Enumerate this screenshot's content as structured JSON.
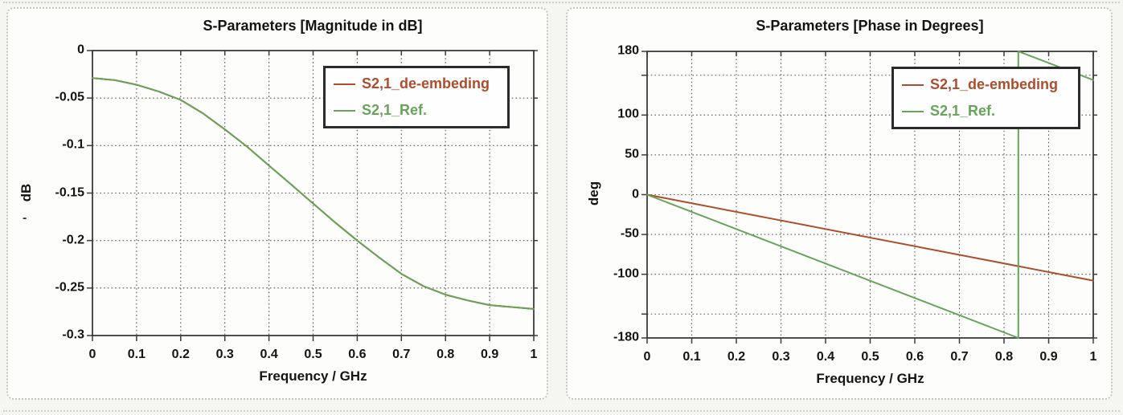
{
  "window": {
    "description": "Scanned screenshot of two side-by-side S-parameter result plots"
  },
  "colors": {
    "page_background": "#f5f5f2",
    "panel_background": "#fdfdfc",
    "panel_border": "#c5c5be",
    "axis_frame": "#3b3b3b",
    "grid": "#575757",
    "text": "#141414",
    "series_red": "#ac4e2c",
    "series_green": "#67a35a",
    "legend_border": "#2b2b2b"
  },
  "artifacts": {
    "smudge_dash": "-"
  },
  "chart_data": [
    {
      "id": "magnitude",
      "type": "line",
      "title": "S-Parameters [Magnitude in dB]",
      "xlabel": "Frequency / GHz",
      "ylabel": "dB",
      "xlim": [
        0,
        1
      ],
      "ylim": [
        -0.3,
        0
      ],
      "grid": "dotted",
      "x_tick_values": [
        0,
        0.1,
        0.2,
        0.3,
        0.4,
        0.5,
        0.6,
        0.7,
        0.8,
        0.9,
        1
      ],
      "x_tick_labels": [
        "0",
        "0.1",
        "0.2",
        "0.3",
        "0.4",
        "0.5",
        "0.6",
        "0.7",
        "0.8",
        "0.9",
        "1"
      ],
      "y_tick_values": [
        0,
        -0.05,
        -0.1,
        -0.15,
        -0.2,
        -0.25,
        -0.3
      ],
      "y_tick_labels": [
        "0",
        "-0.05",
        "-0.1",
        "-0.15",
        "-0.2",
        "-0.25",
        "-0.3"
      ],
      "x_grid_values": [
        0.1,
        0.2,
        0.3,
        0.4,
        0.5,
        0.6,
        0.7,
        0.8,
        0.9
      ],
      "y_grid_values": [
        -0.05,
        -0.1,
        -0.15,
        -0.2,
        -0.25
      ],
      "legend": {
        "position": "top-right-inside",
        "entries": [
          {
            "label": "S2,1_de-embeding",
            "color": "#ac4e2c"
          },
          {
            "label": "S2,1_Ref.",
            "color": "#67a35a"
          }
        ]
      },
      "series": [
        {
          "name": "S2,1_de-embeding",
          "color": "#ac4e2c",
          "x": [
            0,
            0.05,
            0.1,
            0.15,
            0.2,
            0.25,
            0.3,
            0.35,
            0.4,
            0.45,
            0.5,
            0.55,
            0.6,
            0.65,
            0.7,
            0.75,
            0.8,
            0.85,
            0.9,
            0.95,
            1
          ],
          "y": [
            -0.029,
            -0.031,
            -0.036,
            -0.043,
            -0.052,
            -0.066,
            -0.083,
            -0.101,
            -0.121,
            -0.141,
            -0.161,
            -0.181,
            -0.2,
            -0.218,
            -0.235,
            -0.248,
            -0.257,
            -0.263,
            -0.268,
            -0.27,
            -0.272
          ]
        },
        {
          "name": "S2,1_Ref.",
          "color": "#67a35a",
          "x": [
            0,
            0.05,
            0.1,
            0.15,
            0.2,
            0.25,
            0.3,
            0.35,
            0.4,
            0.45,
            0.5,
            0.55,
            0.6,
            0.65,
            0.7,
            0.75,
            0.8,
            0.85,
            0.9,
            0.95,
            1
          ],
          "y": [
            -0.029,
            -0.031,
            -0.036,
            -0.043,
            -0.052,
            -0.066,
            -0.083,
            -0.101,
            -0.121,
            -0.141,
            -0.161,
            -0.181,
            -0.2,
            -0.218,
            -0.235,
            -0.248,
            -0.257,
            -0.263,
            -0.268,
            -0.27,
            -0.272
          ]
        }
      ],
      "note": "Both curves overlap exactly; green (Ref.) is drawn on top so only green is visible."
    },
    {
      "id": "phase",
      "type": "line",
      "title": "S-Parameters [Phase in Degrees]",
      "xlabel": "Frequency / GHz",
      "ylabel": "deg",
      "xlim": [
        0,
        1
      ],
      "ylim": [
        -180,
        180
      ],
      "grid": "dotted",
      "x_tick_values": [
        0,
        0.1,
        0.2,
        0.3,
        0.4,
        0.5,
        0.6,
        0.7,
        0.8,
        0.9,
        1
      ],
      "x_tick_labels": [
        "0",
        "0.1",
        "0.2",
        "0.3",
        "0.4",
        "0.5",
        "0.6",
        "0.7",
        "0.8",
        "0.9",
        "1"
      ],
      "y_tick_values": [
        180,
        100,
        50,
        0,
        -50,
        -100,
        -180
      ],
      "y_tick_labels": [
        "180",
        "100",
        "50",
        "0",
        "-50",
        "-100",
        "-180"
      ],
      "x_grid_values": [
        0.1,
        0.2,
        0.3,
        0.4,
        0.5,
        0.6,
        0.7,
        0.8,
        0.9
      ],
      "y_grid_values": [
        150,
        100,
        50,
        0,
        -50,
        -100,
        -150
      ],
      "legend": {
        "position": "top-right-inside",
        "entries": [
          {
            "label": "S2,1_de-embeding",
            "color": "#ac4e2c"
          },
          {
            "label": "S2,1_Ref.",
            "color": "#67a35a"
          }
        ]
      },
      "series": [
        {
          "name": "S2,1_de-embeding",
          "color": "#ac4e2c",
          "x": [
            0,
            1
          ],
          "y": [
            0,
            -108
          ]
        },
        {
          "name": "S2,1_Ref.",
          "color": "#67a35a",
          "x": [
            0,
            0.832,
            0.832,
            1
          ],
          "y": [
            0,
            -180,
            180,
            144
          ],
          "note": "Phase wraps from -180 to +180 at about 0.83 GHz (vertical jump line)."
        }
      ]
    }
  ]
}
